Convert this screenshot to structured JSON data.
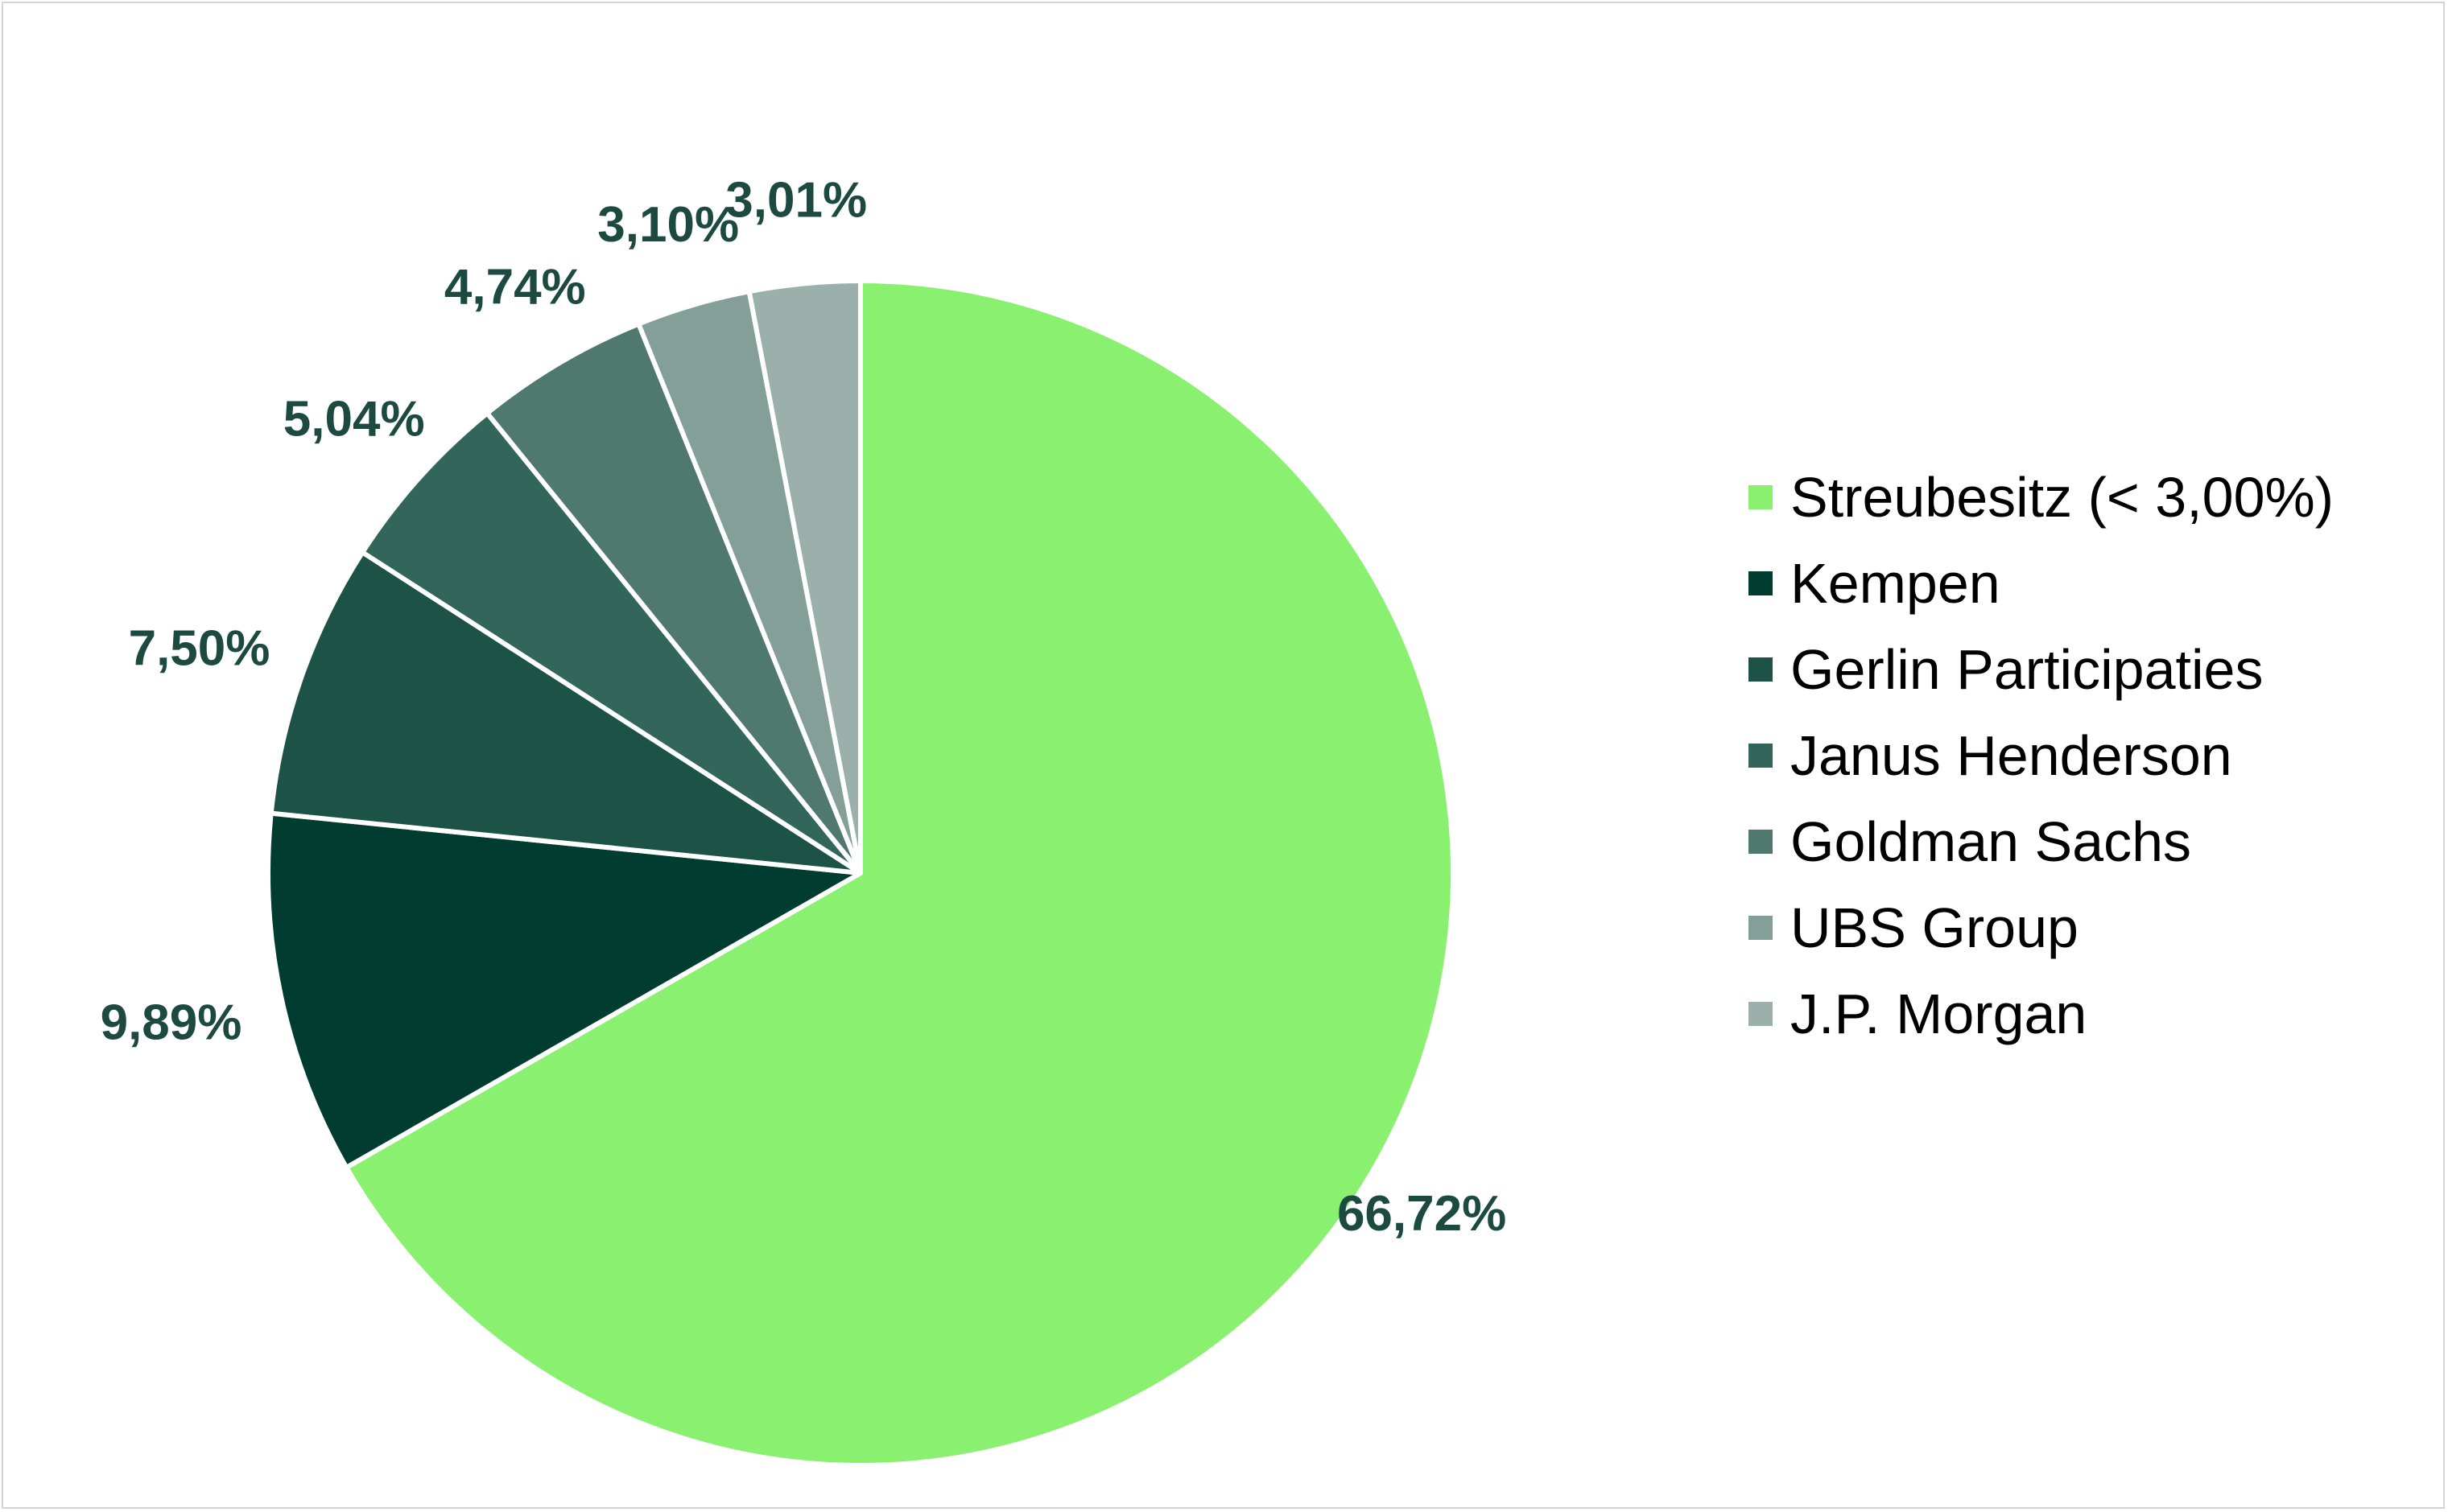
{
  "chart_data": {
    "type": "pie",
    "title": "",
    "start_angle_deg": 0,
    "direction": "clockwise",
    "legend_placement": "right",
    "label_color": "#1d4a40",
    "separator_color": "#ffffff",
    "slices": [
      {
        "name": "Streubesitz (< 3,00%)",
        "value": 66.72,
        "label": "66,72%",
        "color": "#8af070"
      },
      {
        "name": "Kempen",
        "value": 9.89,
        "label": "9,89%",
        "color": "#003d30"
      },
      {
        "name": "Gerlin Participaties",
        "value": 7.5,
        "label": "7,50%",
        "color": "#1d5246"
      },
      {
        "name": "Janus Henderson",
        "value": 5.04,
        "label": "5,04%",
        "color": "#33665a"
      },
      {
        "name": "Goldman Sachs",
        "value": 4.74,
        "label": "4,74%",
        "color": "#4f786e"
      },
      {
        "name": "UBS Group",
        "value": 3.1,
        "label": "3,10%",
        "color": "#849f98"
      },
      {
        "name": "J.P. Morgan",
        "value": 3.01,
        "label": "3,01%",
        "color": "#9bb0aa"
      }
    ]
  }
}
